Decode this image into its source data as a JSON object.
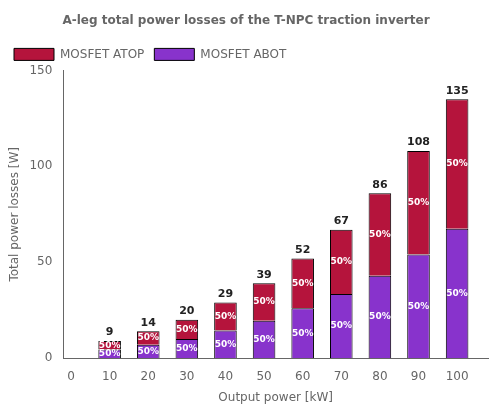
{
  "chart_data": {
    "type": "bar",
    "stacked": true,
    "title": "A-leg total power losses of the T-NPC traction inverter",
    "xlabel": "Output power [kW]",
    "ylabel": "Total power losses [W]",
    "x": [
      10,
      20,
      30,
      40,
      50,
      60,
      70,
      80,
      90,
      100
    ],
    "series": [
      {
        "name": "MOSFET ATOP",
        "color": "#b5143c",
        "values": [
          4.5,
          7,
          10,
          14.5,
          19.5,
          26,
          33.5,
          43,
          54,
          67.5
        ],
        "shares": [
          {
            "value": 50,
            "label": "50%"
          },
          {
            "value": 50,
            "label": "50%"
          },
          {
            "value": 50,
            "label": "50%"
          },
          {
            "value": 50,
            "label": "50%"
          },
          {
            "value": 50,
            "label": "50%"
          },
          {
            "value": 50,
            "label": "50%"
          },
          {
            "value": 50,
            "label": "50%"
          },
          {
            "value": 50,
            "label": "50%"
          },
          {
            "value": 50,
            "label": "50%"
          },
          {
            "value": 50,
            "label": "50%"
          }
        ]
      },
      {
        "name": "MOSFET ABOT",
        "color": "#8833cc",
        "values": [
          4.5,
          7,
          10,
          14.5,
          19.5,
          26,
          33.5,
          43,
          54,
          67.5
        ],
        "shares": [
          {
            "value": 50,
            "label": "50%"
          },
          {
            "value": 50,
            "label": "50%"
          },
          {
            "value": 50,
            "label": "50%"
          },
          {
            "value": 50,
            "label": "50%"
          },
          {
            "value": 50,
            "label": "50%"
          },
          {
            "value": 50,
            "label": "50%"
          },
          {
            "value": 50,
            "label": "50%"
          },
          {
            "value": 50,
            "label": "50%"
          },
          {
            "value": 50,
            "label": "50%"
          },
          {
            "value": 50,
            "label": "50%"
          }
        ]
      }
    ],
    "totals": [
      9,
      14,
      20,
      29,
      39,
      52,
      67,
      86,
      108,
      135
    ],
    "xlim": [
      -2,
      108
    ],
    "xticks": [
      0,
      10,
      20,
      30,
      40,
      50,
      60,
      70,
      80,
      90,
      100
    ],
    "ylim": [
      0,
      150
    ],
    "yticks": [
      0,
      50,
      100,
      150
    ],
    "grid": false,
    "legend": "upper left"
  }
}
